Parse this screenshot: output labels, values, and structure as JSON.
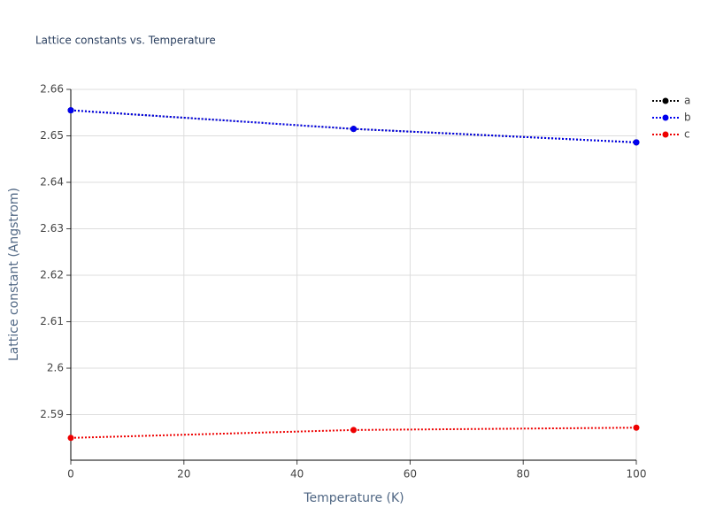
{
  "chart_data": {
    "type": "line",
    "title": "Lattice constants vs. Temperature",
    "x_label": "Temperature (K)",
    "y_label": "Lattice constant (Angstrom)",
    "x": [
      0,
      50,
      100
    ],
    "series": [
      {
        "name": "a",
        "color": "#000000",
        "values": [
          2.6555,
          2.6515,
          2.6486
        ]
      },
      {
        "name": "b",
        "color": "#0000ee",
        "values": [
          2.6555,
          2.6515,
          2.6486
        ]
      },
      {
        "name": "c",
        "color": "#ee0000",
        "values": [
          2.585,
          2.5867,
          2.5872
        ]
      }
    ],
    "xlim": [
      0,
      100
    ],
    "xticks": [
      0,
      20,
      40,
      60,
      80,
      100
    ],
    "ylim": [
      2.5802,
      2.66
    ],
    "yticks": [
      2.59,
      2.6,
      2.61,
      2.62,
      2.63,
      2.64,
      2.65,
      2.66
    ],
    "grid": true,
    "legend": "upper right"
  }
}
